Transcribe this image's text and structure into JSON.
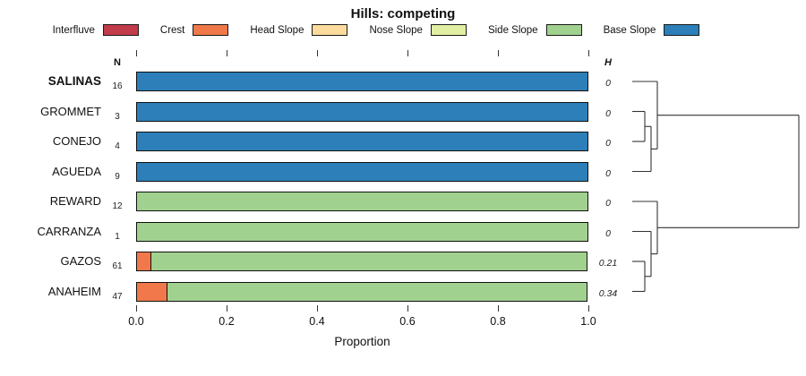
{
  "title": "Hills: competing",
  "columns": {
    "n_header": "N",
    "h_header": "H"
  },
  "xlabel": "Proportion",
  "chart_data": {
    "type": "bar",
    "orientation": "horizontal-stacked",
    "title": "Hills: competing",
    "xlabel": "Proportion",
    "xlim": [
      0,
      1
    ],
    "grid": false,
    "legend_position": "top",
    "legend": [
      {
        "label": "Interfluve",
        "color": "#C23B4B"
      },
      {
        "label": "Crest",
        "color": "#F0784A"
      },
      {
        "label": "Head Slope",
        "color": "#FBDC9C"
      },
      {
        "label": "Nose Slope",
        "color": "#E1EFA3"
      },
      {
        "label": "Side Slope",
        "color": "#A1D18F"
      },
      {
        "label": "Base Slope",
        "color": "#2C7FB8"
      }
    ],
    "x_ticks": [
      "0.0",
      "0.2",
      "0.4",
      "0.6",
      "0.8",
      "1.0"
    ],
    "x_tick_values": [
      0,
      0.2,
      0.4,
      0.6,
      0.8,
      1.0
    ],
    "rows": [
      {
        "label": "SALINAS",
        "bold": true,
        "n": "16",
        "h": "0",
        "segments": [
          {
            "category": "Base Slope",
            "value": 1.0
          }
        ]
      },
      {
        "label": "GROMMET",
        "bold": false,
        "n": "3",
        "h": "0",
        "segments": [
          {
            "category": "Base Slope",
            "value": 1.0
          }
        ]
      },
      {
        "label": "CONEJO",
        "bold": false,
        "n": "4",
        "h": "0",
        "segments": [
          {
            "category": "Base Slope",
            "value": 1.0
          }
        ]
      },
      {
        "label": "AGUEDA",
        "bold": false,
        "n": "9",
        "h": "0",
        "segments": [
          {
            "category": "Base Slope",
            "value": 1.0
          }
        ]
      },
      {
        "label": "REWARD",
        "bold": false,
        "n": "12",
        "h": "0",
        "segments": [
          {
            "category": "Side Slope",
            "value": 1.0
          }
        ]
      },
      {
        "label": "CARRANZA",
        "bold": false,
        "n": "1",
        "h": "0",
        "segments": [
          {
            "category": "Side Slope",
            "value": 1.0
          }
        ]
      },
      {
        "label": "GAZOS",
        "bold": false,
        "n": "61",
        "h": "0.21",
        "segments": [
          {
            "category": "Crest",
            "value": 0.035
          },
          {
            "category": "Side Slope",
            "value": 0.965
          }
        ]
      },
      {
        "label": "ANAHEIM",
        "bold": false,
        "n": "47",
        "h": "0.34",
        "segments": [
          {
            "category": "Crest",
            "value": 0.07
          },
          {
            "category": "Side Slope",
            "value": 0.93
          }
        ]
      }
    ],
    "dendrogram": {
      "description": "hierarchical clustering of rows; clusters (SALINAS,(AGUEDA,(GROMMET,CONEJO))) and (REWARD,(CARRANZA,(GAZOS,ANAHEIM))) joined at root",
      "segments": [
        [
          6,
          54.5,
          20,
          54.5
        ],
        [
          6,
          88,
          20,
          88
        ],
        [
          20,
          54.5,
          20,
          88
        ],
        [
          20,
          71.25,
          27,
          71.25
        ],
        [
          6,
          121.5,
          27,
          121.5
        ],
        [
          27,
          71.25,
          27,
          121.5
        ],
        [
          27,
          96.4,
          34,
          96.4
        ],
        [
          6,
          21,
          34,
          21
        ],
        [
          34,
          21,
          34,
          96.4
        ],
        [
          34,
          58.7,
          192,
          58.7
        ],
        [
          6,
          222,
          20,
          222
        ],
        [
          6,
          255.5,
          20,
          255.5
        ],
        [
          20,
          222,
          20,
          255.5
        ],
        [
          20,
          238.75,
          27,
          238.75
        ],
        [
          6,
          188.5,
          27,
          188.5
        ],
        [
          27,
          188.5,
          27,
          238.75
        ],
        [
          27,
          213.6,
          34,
          213.6
        ],
        [
          6,
          155,
          34,
          155
        ],
        [
          34,
          155,
          34,
          213.6
        ],
        [
          34,
          184.3,
          192,
          184.3
        ],
        [
          192,
          58.7,
          192,
          184.3
        ]
      ]
    }
  }
}
